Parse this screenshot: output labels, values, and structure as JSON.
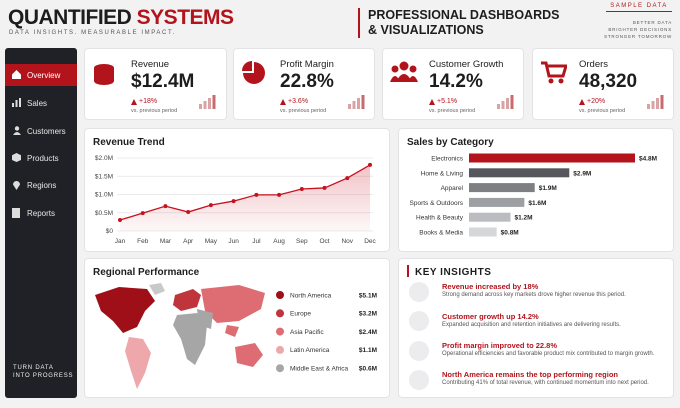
{
  "header": {
    "brand_a": "QUANTIFIED",
    "brand_b": "SYSTEMS",
    "tagline": "DATA INSIGHTS. MEASURABLE IMPACT.",
    "headline_1": "PROFESSIONAL DASHBOARDS",
    "headline_2": "& VISUALIZATIONS",
    "badge": "SAMPLE DATA",
    "motto": [
      "BETTER DATA",
      "BRIGHTER DECISIONS",
      "STRONGER TOMORROW"
    ]
  },
  "sidebar": {
    "items": [
      "Overview",
      "Sales",
      "Customers",
      "Products",
      "Regions",
      "Reports"
    ],
    "footer": [
      "TURN DATA",
      "INTO PROGRESS"
    ]
  },
  "kpis": [
    {
      "title": "Revenue",
      "value": "$12.4M",
      "change": "+18%",
      "note": "vs. previous period"
    },
    {
      "title": "Profit Margin",
      "value": "22.8%",
      "change": "+3.6%",
      "note": "vs. previous period"
    },
    {
      "title": "Customer Growth",
      "value": "14.2%",
      "change": "+5.1%",
      "note": "vs. previous period"
    },
    {
      "title": "Orders",
      "value": "48,320",
      "change": "+20%",
      "note": "vs. previous period"
    }
  ],
  "chart_data": [
    {
      "type": "line",
      "title": "Revenue Trend",
      "categories": [
        "Jan",
        "Feb",
        "Mar",
        "Apr",
        "May",
        "Jun",
        "Jul",
        "Aug",
        "Sep",
        "Oct",
        "Nov",
        "Dec"
      ],
      "values": [
        0.3,
        0.49,
        0.68,
        0.52,
        0.71,
        0.82,
        0.99,
        0.99,
        1.15,
        1.18,
        1.45,
        1.81
      ],
      "color": "#c8101e",
      "ylim": [
        0,
        2
      ],
      "yticks": [
        {
          "value": 0,
          "label": "$0"
        },
        {
          "value": 0.5,
          "label": "$0.5M"
        },
        {
          "value": 1,
          "label": "$1.0M"
        },
        {
          "value": 1.5,
          "label": "$1.5M"
        },
        {
          "value": 2,
          "label": "$2.0M"
        }
      ],
      "grid": true
    },
    {
      "type": "bar",
      "title": "Sales by Category",
      "categories": [
        "Electronics",
        "Home & Living",
        "Apparel",
        "Sports & Outdoors",
        "Health & Beauty",
        "Books & Media"
      ],
      "values": [
        4.8,
        2.9,
        1.9,
        1.6,
        1.2,
        0.8
      ],
      "value_labels": [
        "$4.8M",
        "$2.9M",
        "$1.9M",
        "$1.6M",
        "$1.2M",
        "$0.8M"
      ],
      "colors": [
        "#b3141c",
        "#55575c",
        "#7d7f83",
        "#9d9fa3",
        "#babcbf",
        "#d6d7d9"
      ]
    }
  ],
  "regional": {
    "title": "Regional Performance",
    "items": [
      {
        "name": "North America",
        "value": "$5.1M",
        "color": "#9e0f17"
      },
      {
        "name": "Europe",
        "value": "$3.2M",
        "color": "#c0343b"
      },
      {
        "name": "Asia Pacific",
        "value": "$2.4M",
        "color": "#dd6d72"
      },
      {
        "name": "Latin America",
        "value": "$1.1M",
        "color": "#eea7aa"
      },
      {
        "name": "Middle East & Africa",
        "value": "$0.6M",
        "color": "#a6a6a6"
      }
    ]
  },
  "insights": {
    "title": "KEY INSIGHTS",
    "items": [
      {
        "title": "Revenue increased by 18%",
        "text": "Strong demand across key markets drove higher revenue this period."
      },
      {
        "title": "Customer growth up 14.2%",
        "text": "Expanded acquisition and retention initiatives are delivering results."
      },
      {
        "title": "Profit margin improved to 22.8%",
        "text": "Operational efficiencies and favorable product mix contributed to margin growth."
      },
      {
        "title": "North America remains the top performing region",
        "text": "Contributing 41% of total revenue, with continued momentum into next period."
      }
    ]
  }
}
